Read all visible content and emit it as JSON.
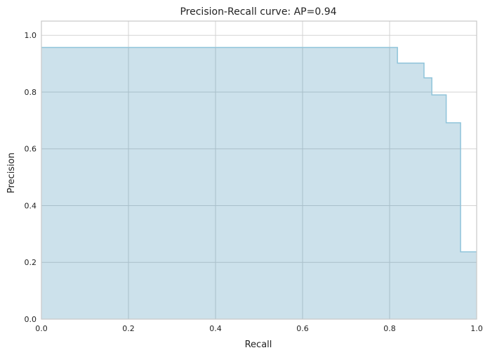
{
  "chart_data": {
    "type": "area",
    "title": "Precision-Recall curve: AP=0.94",
    "xlabel": "Recall",
    "ylabel": "Precision",
    "xlim": [
      0,
      1
    ],
    "ylim": [
      0,
      1.05
    ],
    "x_ticks": [
      "0.0",
      "0.2",
      "0.4",
      "0.6",
      "0.8",
      "1.0"
    ],
    "y_ticks": [
      "0.0",
      "0.2",
      "0.4",
      "0.6",
      "0.8",
      "1.0"
    ],
    "grid": true,
    "series": [
      {
        "name": "precision-recall",
        "step": "post",
        "recall": [
          0.0,
          0.818,
          0.879,
          0.897,
          0.93,
          0.963,
          1.0
        ],
        "precision": [
          0.957,
          0.902,
          0.85,
          0.79,
          0.692,
          0.237,
          0.237
        ]
      }
    ],
    "colors": {
      "fill": "#cce1eb",
      "line": "#8fc4da",
      "grid_on_fill": "#a9bfca",
      "grid": "#d3d3d3",
      "spine": "#c8c8c8"
    }
  }
}
